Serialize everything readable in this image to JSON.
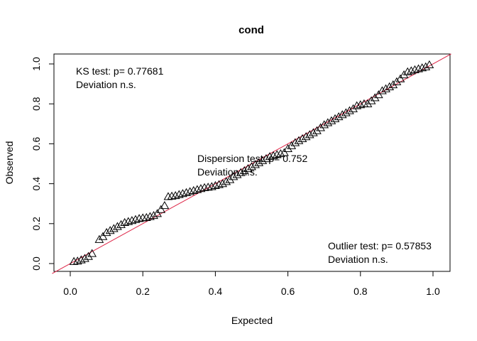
{
  "chart_data": {
    "type": "scatter",
    "title": "cond",
    "xlabel": "Expected",
    "ylabel": "Observed",
    "xlim": [
      -0.05,
      1.05
    ],
    "ylim": [
      -0.04,
      1.04
    ],
    "x_ticks": [
      "0.0",
      "0.2",
      "0.4",
      "0.6",
      "0.8",
      "1.0"
    ],
    "y_ticks": [
      "0.0",
      "0.2",
      "0.4",
      "0.6",
      "0.8",
      "1.0"
    ],
    "reference_line": {
      "color": "#dd2244",
      "slope": 1,
      "intercept": 0
    },
    "marker": "triangle",
    "annotations": {
      "ks": {
        "line1": "KS test: p= 0.77681",
        "line2": "Deviation  n.s."
      },
      "dispersion": {
        "line1": "Dispersion test: p= 0.752",
        "line2": "Deviation  n.s."
      },
      "outlier": {
        "line1": "Outlier test: p= 0.57853",
        "line2": "Deviation  n.s."
      }
    },
    "points": [
      [
        0.01,
        0.01
      ],
      [
        0.02,
        0.012
      ],
      [
        0.03,
        0.018
      ],
      [
        0.04,
        0.025
      ],
      [
        0.05,
        0.035
      ],
      [
        0.06,
        0.05
      ],
      [
        0.08,
        0.12
      ],
      [
        0.09,
        0.135
      ],
      [
        0.1,
        0.155
      ],
      [
        0.11,
        0.165
      ],
      [
        0.12,
        0.175
      ],
      [
        0.13,
        0.185
      ],
      [
        0.14,
        0.195
      ],
      [
        0.15,
        0.205
      ],
      [
        0.16,
        0.21
      ],
      [
        0.17,
        0.215
      ],
      [
        0.18,
        0.22
      ],
      [
        0.19,
        0.225
      ],
      [
        0.2,
        0.228
      ],
      [
        0.21,
        0.23
      ],
      [
        0.22,
        0.235
      ],
      [
        0.23,
        0.24
      ],
      [
        0.24,
        0.25
      ],
      [
        0.25,
        0.27
      ],
      [
        0.26,
        0.29
      ],
      [
        0.27,
        0.335
      ],
      [
        0.28,
        0.337
      ],
      [
        0.29,
        0.34
      ],
      [
        0.3,
        0.345
      ],
      [
        0.31,
        0.35
      ],
      [
        0.32,
        0.355
      ],
      [
        0.33,
        0.36
      ],
      [
        0.34,
        0.365
      ],
      [
        0.35,
        0.37
      ],
      [
        0.36,
        0.375
      ],
      [
        0.37,
        0.38
      ],
      [
        0.38,
        0.382
      ],
      [
        0.39,
        0.385
      ],
      [
        0.4,
        0.39
      ],
      [
        0.41,
        0.395
      ],
      [
        0.42,
        0.4
      ],
      [
        0.43,
        0.41
      ],
      [
        0.44,
        0.42
      ],
      [
        0.45,
        0.435
      ],
      [
        0.46,
        0.445
      ],
      [
        0.47,
        0.455
      ],
      [
        0.48,
        0.465
      ],
      [
        0.49,
        0.475
      ],
      [
        0.5,
        0.485
      ],
      [
        0.51,
        0.495
      ],
      [
        0.52,
        0.505
      ],
      [
        0.53,
        0.515
      ],
      [
        0.54,
        0.525
      ],
      [
        0.55,
        0.535
      ],
      [
        0.56,
        0.54
      ],
      [
        0.57,
        0.545
      ],
      [
        0.58,
        0.55
      ],
      [
        0.59,
        0.555
      ],
      [
        0.6,
        0.575
      ],
      [
        0.61,
        0.59
      ],
      [
        0.62,
        0.605
      ],
      [
        0.63,
        0.615
      ],
      [
        0.64,
        0.625
      ],
      [
        0.65,
        0.635
      ],
      [
        0.66,
        0.645
      ],
      [
        0.67,
        0.655
      ],
      [
        0.68,
        0.665
      ],
      [
        0.69,
        0.68
      ],
      [
        0.7,
        0.695
      ],
      [
        0.71,
        0.705
      ],
      [
        0.72,
        0.715
      ],
      [
        0.73,
        0.725
      ],
      [
        0.74,
        0.735
      ],
      [
        0.75,
        0.745
      ],
      [
        0.76,
        0.755
      ],
      [
        0.77,
        0.765
      ],
      [
        0.78,
        0.775
      ],
      [
        0.79,
        0.79
      ],
      [
        0.8,
        0.795
      ],
      [
        0.81,
        0.8
      ],
      [
        0.82,
        0.8
      ],
      [
        0.83,
        0.815
      ],
      [
        0.84,
        0.83
      ],
      [
        0.85,
        0.845
      ],
      [
        0.86,
        0.865
      ],
      [
        0.87,
        0.875
      ],
      [
        0.88,
        0.885
      ],
      [
        0.89,
        0.895
      ],
      [
        0.9,
        0.91
      ],
      [
        0.91,
        0.925
      ],
      [
        0.92,
        0.945
      ],
      [
        0.93,
        0.96
      ],
      [
        0.94,
        0.965
      ],
      [
        0.95,
        0.97
      ],
      [
        0.96,
        0.975
      ],
      [
        0.97,
        0.98
      ],
      [
        0.98,
        0.985
      ],
      [
        0.99,
        0.995
      ]
    ]
  }
}
